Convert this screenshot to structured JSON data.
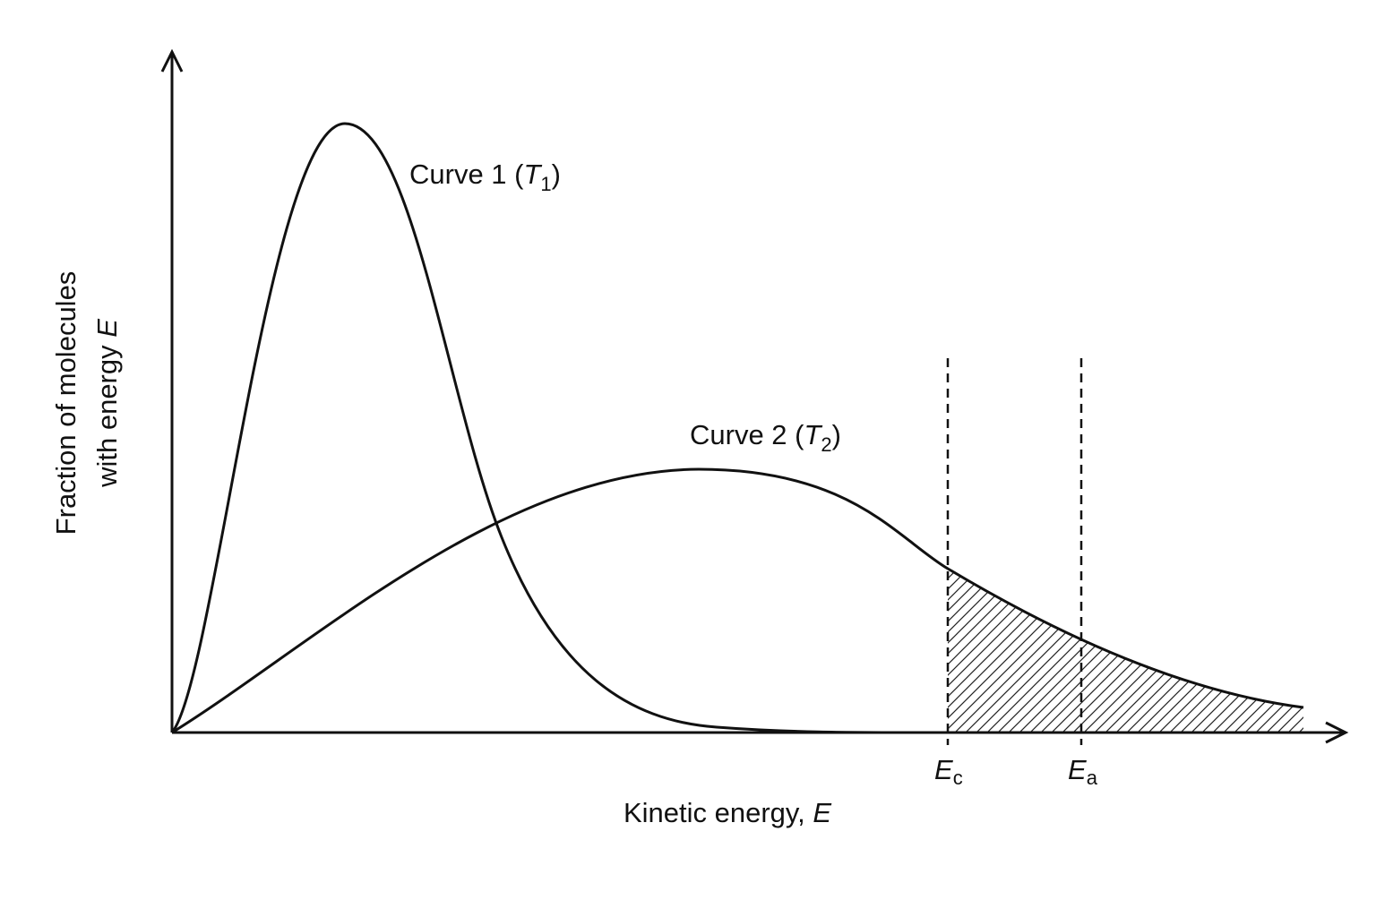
{
  "y_axis": {
    "label_line1": "Fraction of molecules",
    "label_line2": "with energy ",
    "label_symbol": "E"
  },
  "x_axis": {
    "label": "Kinetic energy, ",
    "label_symbol": "E"
  },
  "curves": [
    {
      "label": "Curve 1 (",
      "symbol": "T",
      "subscript": "1",
      "close": ")"
    },
    {
      "label": "Curve 2 (",
      "symbol": "T",
      "subscript": "2",
      "close": ")"
    }
  ],
  "markers": [
    {
      "symbol": "E",
      "subscript": "c"
    },
    {
      "symbol": "E",
      "subscript": "a"
    }
  ]
}
